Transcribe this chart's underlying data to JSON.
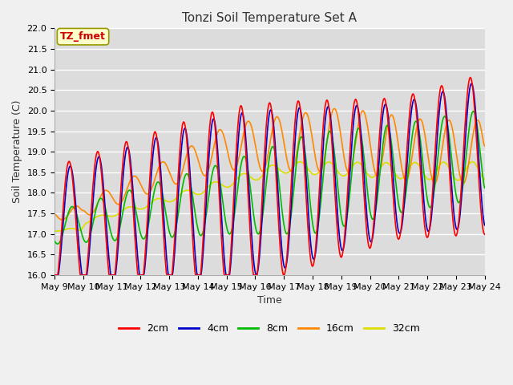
{
  "title": "Tonzi Soil Temperature Set A",
  "xlabel": "Time",
  "ylabel": "Soil Temperature (C)",
  "ylim": [
    16.0,
    22.0
  ],
  "yticks": [
    16.0,
    16.5,
    17.0,
    17.5,
    18.0,
    18.5,
    19.0,
    19.5,
    20.0,
    20.5,
    21.0,
    21.5,
    22.0
  ],
  "xtick_labels": [
    "May 9",
    "May 10",
    "May 11",
    "May 12",
    "May 13",
    "May 14",
    "May 15",
    "May 16",
    "May 17",
    "May 18",
    "May 19",
    "May 20",
    "May 21",
    "May 22",
    "May 23",
    "May 24"
  ],
  "legend_labels": [
    "2cm",
    "4cm",
    "8cm",
    "16cm",
    "32cm"
  ],
  "line_colors": [
    "#ff0000",
    "#0000cc",
    "#00bb00",
    "#ff8800",
    "#dddd00"
  ],
  "annotation_text": "TZ_fmet",
  "annotation_color": "#cc0000",
  "annotation_bg": "#ffffcc",
  "annotation_edge": "#999900",
  "fig_bg_color": "#f0f0f0",
  "plot_bg_color": "#dcdcdc",
  "grid_color": "#ffffff",
  "title_fontsize": 11,
  "axis_label_fontsize": 9,
  "tick_fontsize": 8,
  "legend_fontsize": 9,
  "linewidth": 1.2
}
